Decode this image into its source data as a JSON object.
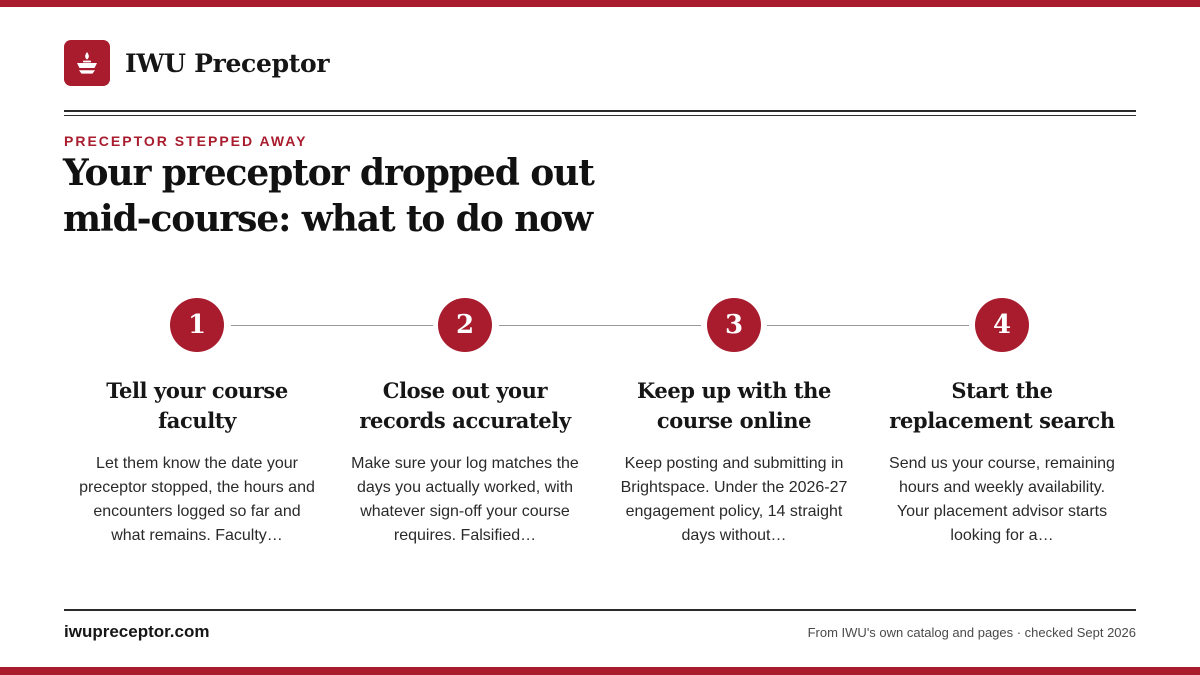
{
  "colors": {
    "accent": "#a81c2e",
    "text": "#161616",
    "muted": "#4a4a4a",
    "rule": "#2b2b2b"
  },
  "header": {
    "logo_icon": "oil-lamp-icon",
    "brand": "IWU Preceptor"
  },
  "eyebrow": "PRECEPTOR STEPPED AWAY",
  "headline": {
    "line1": "Your preceptor dropped out",
    "line2": "mid-course: what to do now"
  },
  "steps": [
    {
      "number": "1",
      "title_line1": "Tell your course",
      "title_line2": "faculty",
      "body": "Let them know the date your preceptor stopped, the hours and encounters logged so far and what remains. Faculty…"
    },
    {
      "number": "2",
      "title_line1": "Close out your",
      "title_line2": "records accurately",
      "body": "Make sure your log matches the days you actually worked, with whatever sign-off your course requires. Falsified…"
    },
    {
      "number": "3",
      "title_line1": "Keep up with the",
      "title_line2": "course online",
      "body": "Keep posting and submitting in Brightspace. Under the 2026-27 engagement policy, 14 straight days without…"
    },
    {
      "number": "4",
      "title_line1": "Start the",
      "title_line2": "replacement search",
      "body": "Send us your course, remaining hours and weekly availability. Your placement advisor starts looking for a…"
    }
  ],
  "footer": {
    "url": "iwupreceptor.com",
    "source": "From IWU's own catalog and pages · checked Sept 2026"
  }
}
